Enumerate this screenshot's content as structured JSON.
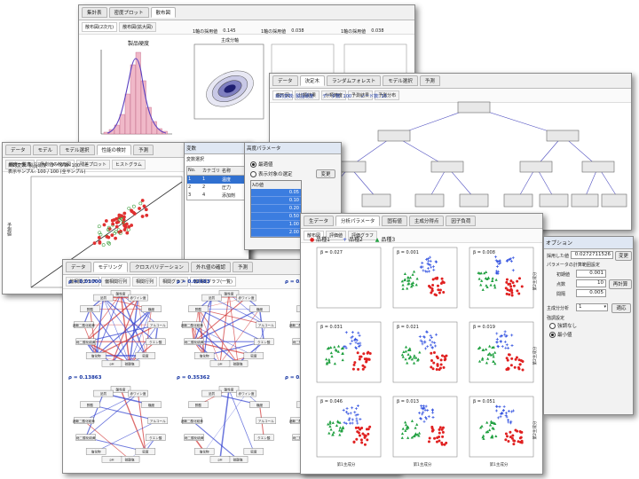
{
  "win_hist": {
    "tabs": [
      "集計表",
      "密度プロット",
      "散布図"
    ],
    "subtabs": [
      "散布図(2次元)",
      "散布図(拡大図)"
    ],
    "hist_title": "製品硬度",
    "stats": [
      {
        "label": "1軸の採用値",
        "value": "0.145"
      },
      {
        "label": "1軸の採用値",
        "value": "0.038"
      },
      {
        "label": "1軸の採用値",
        "value": "0.038"
      }
    ],
    "axis_label": "主成分軸"
  },
  "win_tree": {
    "tabs": [
      "データ",
      "決定木",
      "ランダムフォレスト",
      "モデル選択",
      "予測"
    ],
    "subtabs": [
      "樹形図",
      "分類結果",
      "分類精度",
      "予測結果",
      "予測分布"
    ],
    "info_target": "目的変数: 製品硬度",
    "info_count": "データ数: 100",
    "info_nodes": "ノード数: 15"
  },
  "win_scatter": {
    "tabs": [
      "データ",
      "モデル",
      "モデル選択",
      "性能の検討",
      "予測"
    ],
    "subtabs": [
      "精度一覧表",
      "予測値の散布図",
      "残差プロット",
      "ヒストグラム",
      "誤差分布",
      "回帰係数"
    ],
    "info": "目的変数: 製品硬度　データ数: 100",
    "info2": "表示サンプル: 100 / 100 (全サンプル)",
    "yaxis": "予測値",
    "xaxis": "実測値"
  },
  "win_vars": {
    "title": "変数",
    "header_label": "変数選択",
    "columns": [
      "No.",
      "カテゴリ",
      "名称"
    ],
    "rows": [
      {
        "no": "1",
        "cat": "1",
        "name": "温度"
      },
      {
        "no": "2",
        "cat": "2",
        "name": "圧力"
      },
      {
        "no": "3",
        "cat": "4",
        "name": "添加剤"
      }
    ]
  },
  "win_param": {
    "title": "高度パラメータ",
    "opt1": "最適値",
    "opt2": "表示対象の選定",
    "button": "変更",
    "list_header": "λの値",
    "values": [
      "0.05",
      "0.10",
      "0.20",
      "0.50",
      "1.00",
      "2.00"
    ]
  },
  "win_network": {
    "tabs": [
      "データ",
      "モデリング",
      "クロスバリデーション",
      "外れ値の確認",
      "予測"
    ],
    "subtabs": [
      "偏相関グラフ",
      "偏相関行列",
      "相関行列",
      "相関グラフ",
      "偏相関グラフ(一覧)"
    ],
    "panels": [
      {
        "rho": "ρ = 0.01000"
      },
      {
        "rho": "ρ = 0.02683"
      },
      {
        "rho": "ρ = 0.07071"
      },
      {
        "rho": "ρ = 0.13863"
      },
      {
        "rho": "ρ = 0.35362"
      },
      {
        "rho": "ρ = 0.99999"
      }
    ],
    "nodes": [
      "酸性度",
      "赤ワイン度",
      "糖度",
      "アルコール",
      "クエン酸",
      "密度",
      "硫酸塩",
      "pH",
      "塩化物",
      "総二酸化硫黄",
      "遊離二酸化硫黄",
      "酢酸",
      "品質"
    ]
  },
  "win_pca": {
    "tabs": [
      "生データ",
      "分析パラメータ",
      "固有値",
      "主成分得点",
      "因子負荷"
    ],
    "subtabs": [
      "散布図",
      "評価値",
      "評価グラフ"
    ],
    "legend": [
      "品種1",
      "品種2",
      "品種3"
    ],
    "legend_colors": [
      "#e02020",
      "#3050e0",
      "#20a040"
    ],
    "betas": [
      "β = 0.027",
      "β = 0.001",
      "β = 0.008",
      "β = 0.031",
      "β = 0.021",
      "β = 0.019",
      "β = 0.046",
      "β = 0.013",
      "β = 0.051"
    ],
    "xlabel": "第1主成分",
    "ylabel": "第2主成分"
  },
  "win_option": {
    "title": "オプション",
    "adopted_label": "採用した値",
    "adopted_value": "0.0272711526",
    "change_button": "変更",
    "param_title": "パラメータの計算範囲設定",
    "initial_label": "初期値",
    "initial_value": "0.001",
    "points_label": "点数",
    "points_value": "10",
    "step_label": "間隔",
    "step_value": "0.005",
    "recalc_button": "再計算",
    "components_label": "主成分分析",
    "components_value": "1",
    "apply_button": "適応",
    "constraint_label": "強調設定",
    "radio1": "強調なし",
    "radio2": "最小値"
  }
}
